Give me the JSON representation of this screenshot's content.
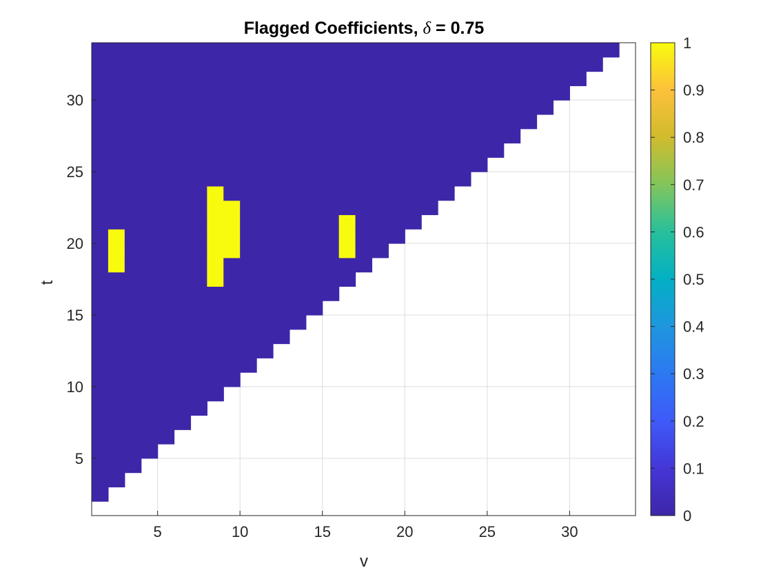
{
  "chart_data": {
    "type": "heatmap",
    "title_prefix": "Flagged Coefficients, ",
    "title_symbol": "δ",
    "title_suffix": " = 0.75",
    "xlabel": "v",
    "ylabel": "t",
    "xlim": [
      1,
      34
    ],
    "ylim": [
      1,
      34
    ],
    "xticks": [
      5,
      10,
      15,
      20,
      25,
      30
    ],
    "yticks": [
      5,
      10,
      15,
      20,
      25,
      30
    ],
    "grid": true,
    "colormap": "parula",
    "colors": {
      "low": "#3e26a8",
      "high": "#f9fb0e"
    },
    "colorbar": {
      "limits": [
        0,
        1
      ],
      "ticks": [
        "0",
        "0.1",
        "0.2",
        "0.3",
        "0.4",
        "0.5",
        "0.6",
        "0.7",
        "0.8",
        "0.9",
        "1"
      ]
    },
    "domain_rule": "cells with t >= v + 1 hold values; cells below the staircase are empty",
    "flagged_cells": [
      {
        "v": 2,
        "t_from": 18,
        "t_to": 20
      },
      {
        "v": 8,
        "t_from": 17,
        "t_to": 23
      },
      {
        "v": 9,
        "t_from": 19,
        "t_to": 22
      },
      {
        "v": 16,
        "t_from": 19,
        "t_to": 21
      }
    ]
  }
}
